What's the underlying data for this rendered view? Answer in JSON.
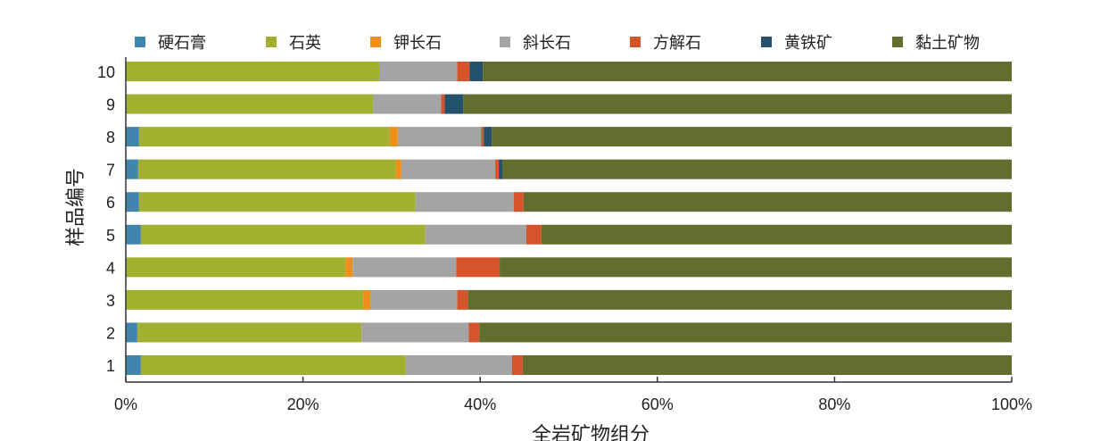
{
  "chart_data": {
    "type": "bar",
    "orientation": "horizontal",
    "stacked": true,
    "normalized": true,
    "title": "",
    "xlabel": "全岩矿物组分",
    "ylabel": "样品编号",
    "xlim": [
      0,
      100
    ],
    "xticks": [
      "0%",
      "20%",
      "40%",
      "60%",
      "80%",
      "100%"
    ],
    "legend_position": "top",
    "categories": [
      "1",
      "2",
      "3",
      "4",
      "5",
      "6",
      "7",
      "8",
      "9",
      "10"
    ],
    "series": [
      {
        "name": "硬石膏",
        "color": "#3f85ae",
        "values": [
          1.7,
          1.3,
          0,
          0,
          1.7,
          1.5,
          1.4,
          1.5,
          0,
          0
        ]
      },
      {
        "name": "石英",
        "color": "#a2b030",
        "values": [
          29.9,
          25.3,
          26.8,
          24.8,
          32.1,
          31.2,
          29.1,
          28.3,
          27.9,
          28.6
        ]
      },
      {
        "name": "钾长石",
        "color": "#ee9018",
        "values": [
          0,
          0,
          0.8,
          0.8,
          0,
          0,
          0.6,
          0.9,
          0,
          0
        ]
      },
      {
        "name": "斜长石",
        "color": "#a3a4a3",
        "values": [
          12.0,
          12.1,
          9.8,
          11.7,
          11.4,
          11.1,
          10.6,
          9.4,
          7.7,
          8.8
        ]
      },
      {
        "name": "方解石",
        "color": "#d6542b",
        "values": [
          1.2,
          1.2,
          1.2,
          4.9,
          1.7,
          1.1,
          0.4,
          0.3,
          0.4,
          1.4
        ]
      },
      {
        "name": "黄铁矿",
        "color": "#24526d",
        "values": [
          0,
          0,
          0,
          0,
          0,
          0,
          0.4,
          0.9,
          2.1,
          1.5
        ]
      },
      {
        "name": "黏土矿物",
        "color": "#626d2e",
        "values": [
          55.2,
          60.1,
          61.4,
          57.8,
          53.1,
          55.1,
          57.5,
          58.7,
          61.9,
          59.7
        ]
      }
    ]
  }
}
